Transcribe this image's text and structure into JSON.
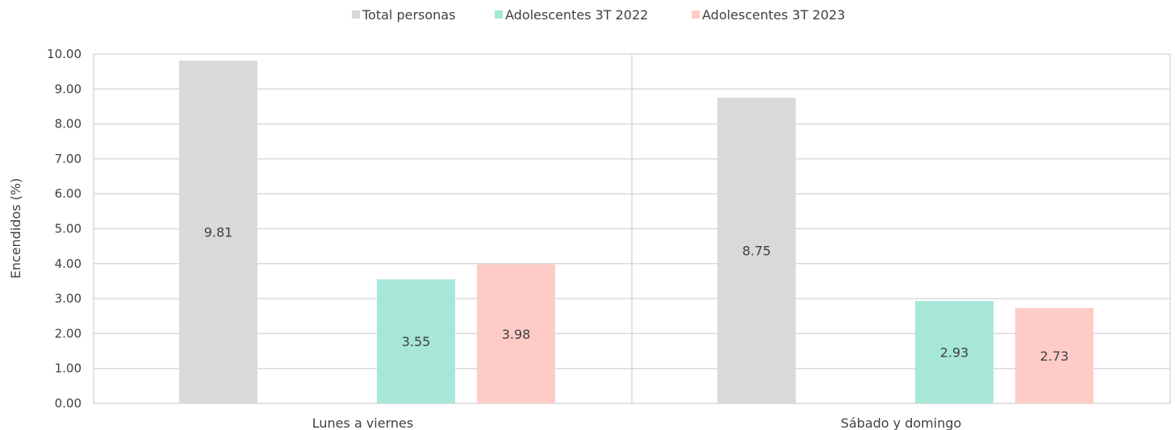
{
  "chart_data": {
    "type": "bar",
    "categories": [
      "Lunes a viernes",
      "Sábado y domingo"
    ],
    "series": [
      {
        "name": "Total personas",
        "values": [
          9.81,
          8.75
        ],
        "color": "#d9d9d9"
      },
      {
        "name": "Adolescentes 3T 2022",
        "values": [
          3.55,
          2.93
        ],
        "color": "#a6e7d8"
      },
      {
        "name": "Adolescentes 3T 2023",
        "values": [
          3.98,
          2.73
        ],
        "color": "#ffcbc7"
      }
    ],
    "ylabel": "Encendidos (%)",
    "xlabel": "",
    "ylim": [
      0,
      10
    ],
    "yticks": [
      "0.00",
      "1.00",
      "2.00",
      "3.00",
      "4.00",
      "5.00",
      "6.00",
      "7.00",
      "8.00",
      "9.00",
      "10.00"
    ],
    "grid": true,
    "legend_position": "top",
    "gridline_color": "#d9d9d9"
  }
}
